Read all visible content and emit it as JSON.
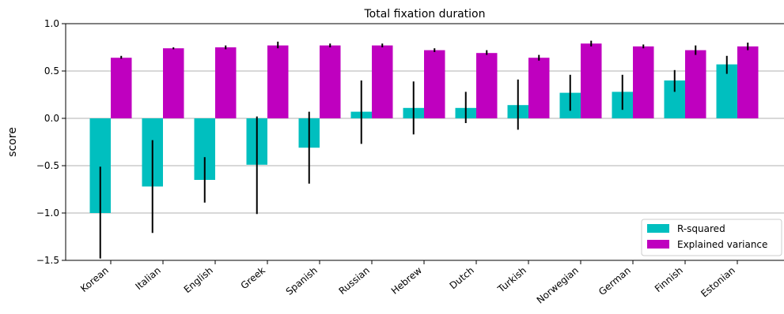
{
  "chart_data": {
    "type": "bar",
    "title": "Total fixation duration",
    "xlabel": "",
    "ylabel": "score",
    "ylim": [
      -1.5,
      1.0
    ],
    "yticks": [
      "−1.5",
      "−1.0",
      "−0.5",
      "0.0",
      "0.5",
      "1.0"
    ],
    "ytick_values": [
      -1.5,
      -1.0,
      -0.5,
      0.0,
      0.5,
      1.0
    ],
    "grid": "horizontal",
    "legend_position": "bottom-right",
    "categories": [
      "Korean",
      "Italian",
      "English",
      "Greek",
      "Spanish",
      "Russian",
      "Hebrew",
      "Dutch",
      "Turkish",
      "Norwegian",
      "German",
      "Finnish",
      "Estonian"
    ],
    "series": [
      {
        "name": "R-squared",
        "color": "#00bfbf",
        "values": [
          -1.0,
          -0.72,
          -0.65,
          -0.49,
          -0.31,
          0.07,
          0.11,
          0.11,
          0.14,
          0.27,
          0.28,
          0.4,
          0.57
        ],
        "err_low": [
          -1.48,
          -1.21,
          -0.89,
          -1.01,
          -0.69,
          -0.27,
          -0.17,
          -0.05,
          -0.12,
          0.08,
          0.09,
          0.28,
          0.47
        ],
        "err_high": [
          -0.51,
          -0.23,
          -0.41,
          0.02,
          0.07,
          0.4,
          0.39,
          0.28,
          0.41,
          0.46,
          0.46,
          0.51,
          0.66
        ]
      },
      {
        "name": "Explained variance",
        "color": "#bf00bf",
        "values": [
          0.64,
          0.74,
          0.75,
          0.77,
          0.77,
          0.77,
          0.72,
          0.69,
          0.64,
          0.79,
          0.76,
          0.72,
          0.76
        ],
        "err_low": [
          0.63,
          0.73,
          0.73,
          0.74,
          0.75,
          0.75,
          0.7,
          0.67,
          0.61,
          0.76,
          0.74,
          0.67,
          0.72
        ],
        "err_high": [
          0.66,
          0.75,
          0.77,
          0.81,
          0.79,
          0.79,
          0.74,
          0.72,
          0.67,
          0.82,
          0.78,
          0.77,
          0.8
        ]
      }
    ]
  }
}
